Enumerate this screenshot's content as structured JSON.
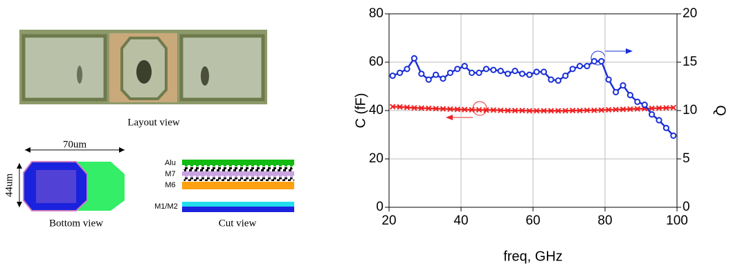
{
  "figure": {
    "layout_caption": "Layout view",
    "bottom_caption": "Bottom view",
    "cut_caption": "Cut view",
    "width_dim": "70um",
    "height_dim": "44um",
    "layers": [
      "Alu",
      "M7",
      "M6",
      "M1/M2"
    ]
  },
  "chart_data": {
    "type": "line",
    "xlabel": "freq, GHz",
    "ylabel": "C (fF)",
    "y2label": "Q",
    "x": [
      21,
      23,
      25,
      27,
      29,
      31,
      33,
      35,
      37,
      39,
      41,
      43,
      45,
      47,
      49,
      51,
      53,
      55,
      57,
      59,
      61,
      63,
      65,
      67,
      69,
      71,
      73,
      75,
      77,
      79,
      81,
      83,
      85,
      87,
      89,
      91,
      93,
      95,
      97,
      99
    ],
    "series": [
      {
        "name": "C",
        "color": "#ee2222",
        "marker": "x",
        "values": [
          41.6,
          41.5,
          41.3,
          41.1,
          41.0,
          40.9,
          40.8,
          40.7,
          40.6,
          40.5,
          40.4,
          40.3,
          40.3,
          40.2,
          40.2,
          40.1,
          40.0,
          40.0,
          40.0,
          39.9,
          39.9,
          39.9,
          39.9,
          39.9,
          39.9,
          40.0,
          40.0,
          40.1,
          40.1,
          40.2,
          40.3,
          40.4,
          40.5,
          40.6,
          40.7,
          40.8,
          40.9,
          41.0,
          41.1,
          41.2
        ]
      },
      {
        "name": "Q",
        "color": "#1a2fd8",
        "marker": "o",
        "axis": "y2",
        "values": [
          13.6,
          13.9,
          14.3,
          15.4,
          13.8,
          13.2,
          13.7,
          13.3,
          13.9,
          14.3,
          14.6,
          13.9,
          13.9,
          14.3,
          14.2,
          14.1,
          13.8,
          14.1,
          13.8,
          13.7,
          14.0,
          14.0,
          13.2,
          13.1,
          13.6,
          14.3,
          14.6,
          14.6,
          15.1,
          15.1,
          13.2,
          11.9,
          12.6,
          11.6,
          10.9,
          10.6,
          9.6,
          9.0,
          8.2,
          7.4
        ]
      }
    ],
    "xlim": [
      20,
      100
    ],
    "xticks": [
      20,
      40,
      60,
      80,
      100
    ],
    "ylim": [
      0,
      80
    ],
    "yticks": [
      0,
      20,
      40,
      60,
      80
    ],
    "y2lim": [
      0,
      20
    ],
    "y2ticks": [
      0,
      5,
      10,
      15,
      20
    ],
    "grid": true
  }
}
